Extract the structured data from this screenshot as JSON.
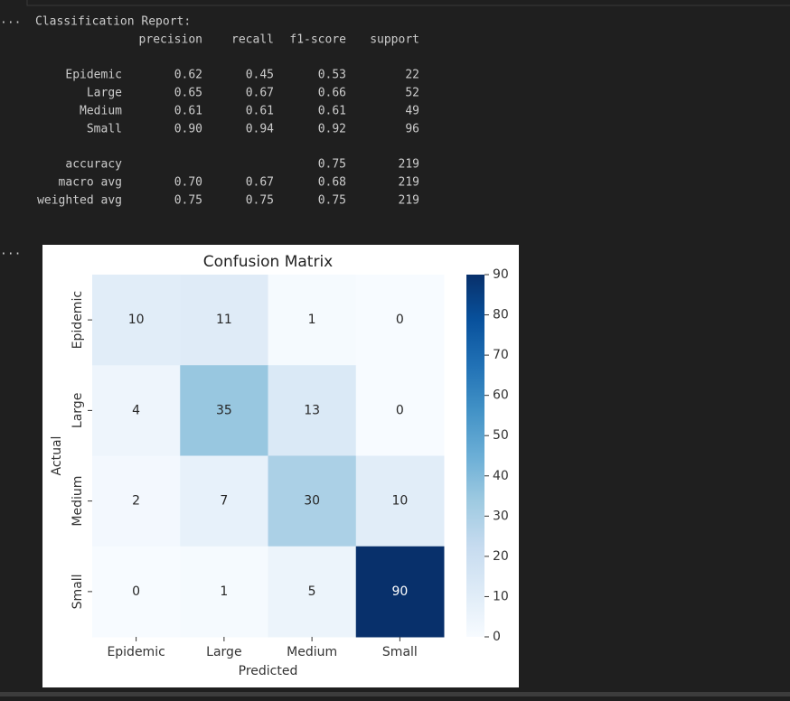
{
  "output_prompts": [
    "...",
    "..."
  ],
  "report": {
    "title": "Classification Report:",
    "headers": [
      "precision",
      "recall",
      "f1-score",
      "support"
    ],
    "rows": [
      {
        "label": "Epidemic",
        "cells": [
          "0.62",
          "0.45",
          "0.53",
          "22"
        ]
      },
      {
        "label": "Large",
        "cells": [
          "0.65",
          "0.67",
          "0.66",
          "52"
        ]
      },
      {
        "label": "Medium",
        "cells": [
          "0.61",
          "0.61",
          "0.61",
          "49"
        ]
      },
      {
        "label": "Small",
        "cells": [
          "0.90",
          "0.94",
          "0.92",
          "96"
        ]
      }
    ],
    "summary": [
      {
        "label": "accuracy",
        "cells": [
          "0.75",
          "219"
        ]
      },
      {
        "label": "macro avg",
        "cells": [
          "0.70",
          "0.67",
          "0.68",
          "219"
        ]
      },
      {
        "label": "weighted avg",
        "cells": [
          "0.75",
          "0.75",
          "0.75",
          "219"
        ]
      }
    ]
  },
  "chart_data": {
    "type": "heatmap",
    "title": "Confusion Matrix",
    "x_label": "Predicted",
    "y_label": "Actual",
    "x_categories": [
      "Epidemic",
      "Large",
      "Medium",
      "Small"
    ],
    "y_categories": [
      "Epidemic",
      "Large",
      "Medium",
      "Small"
    ],
    "values": [
      [
        10,
        11,
        1,
        0
      ],
      [
        4,
        35,
        13,
        0
      ],
      [
        2,
        7,
        30,
        10
      ],
      [
        0,
        1,
        5,
        90
      ]
    ],
    "colormap": "Blues",
    "clim": [
      0,
      90
    ],
    "cticks": [
      0,
      10,
      20,
      30,
      40,
      50,
      60,
      70,
      80,
      90
    ]
  }
}
